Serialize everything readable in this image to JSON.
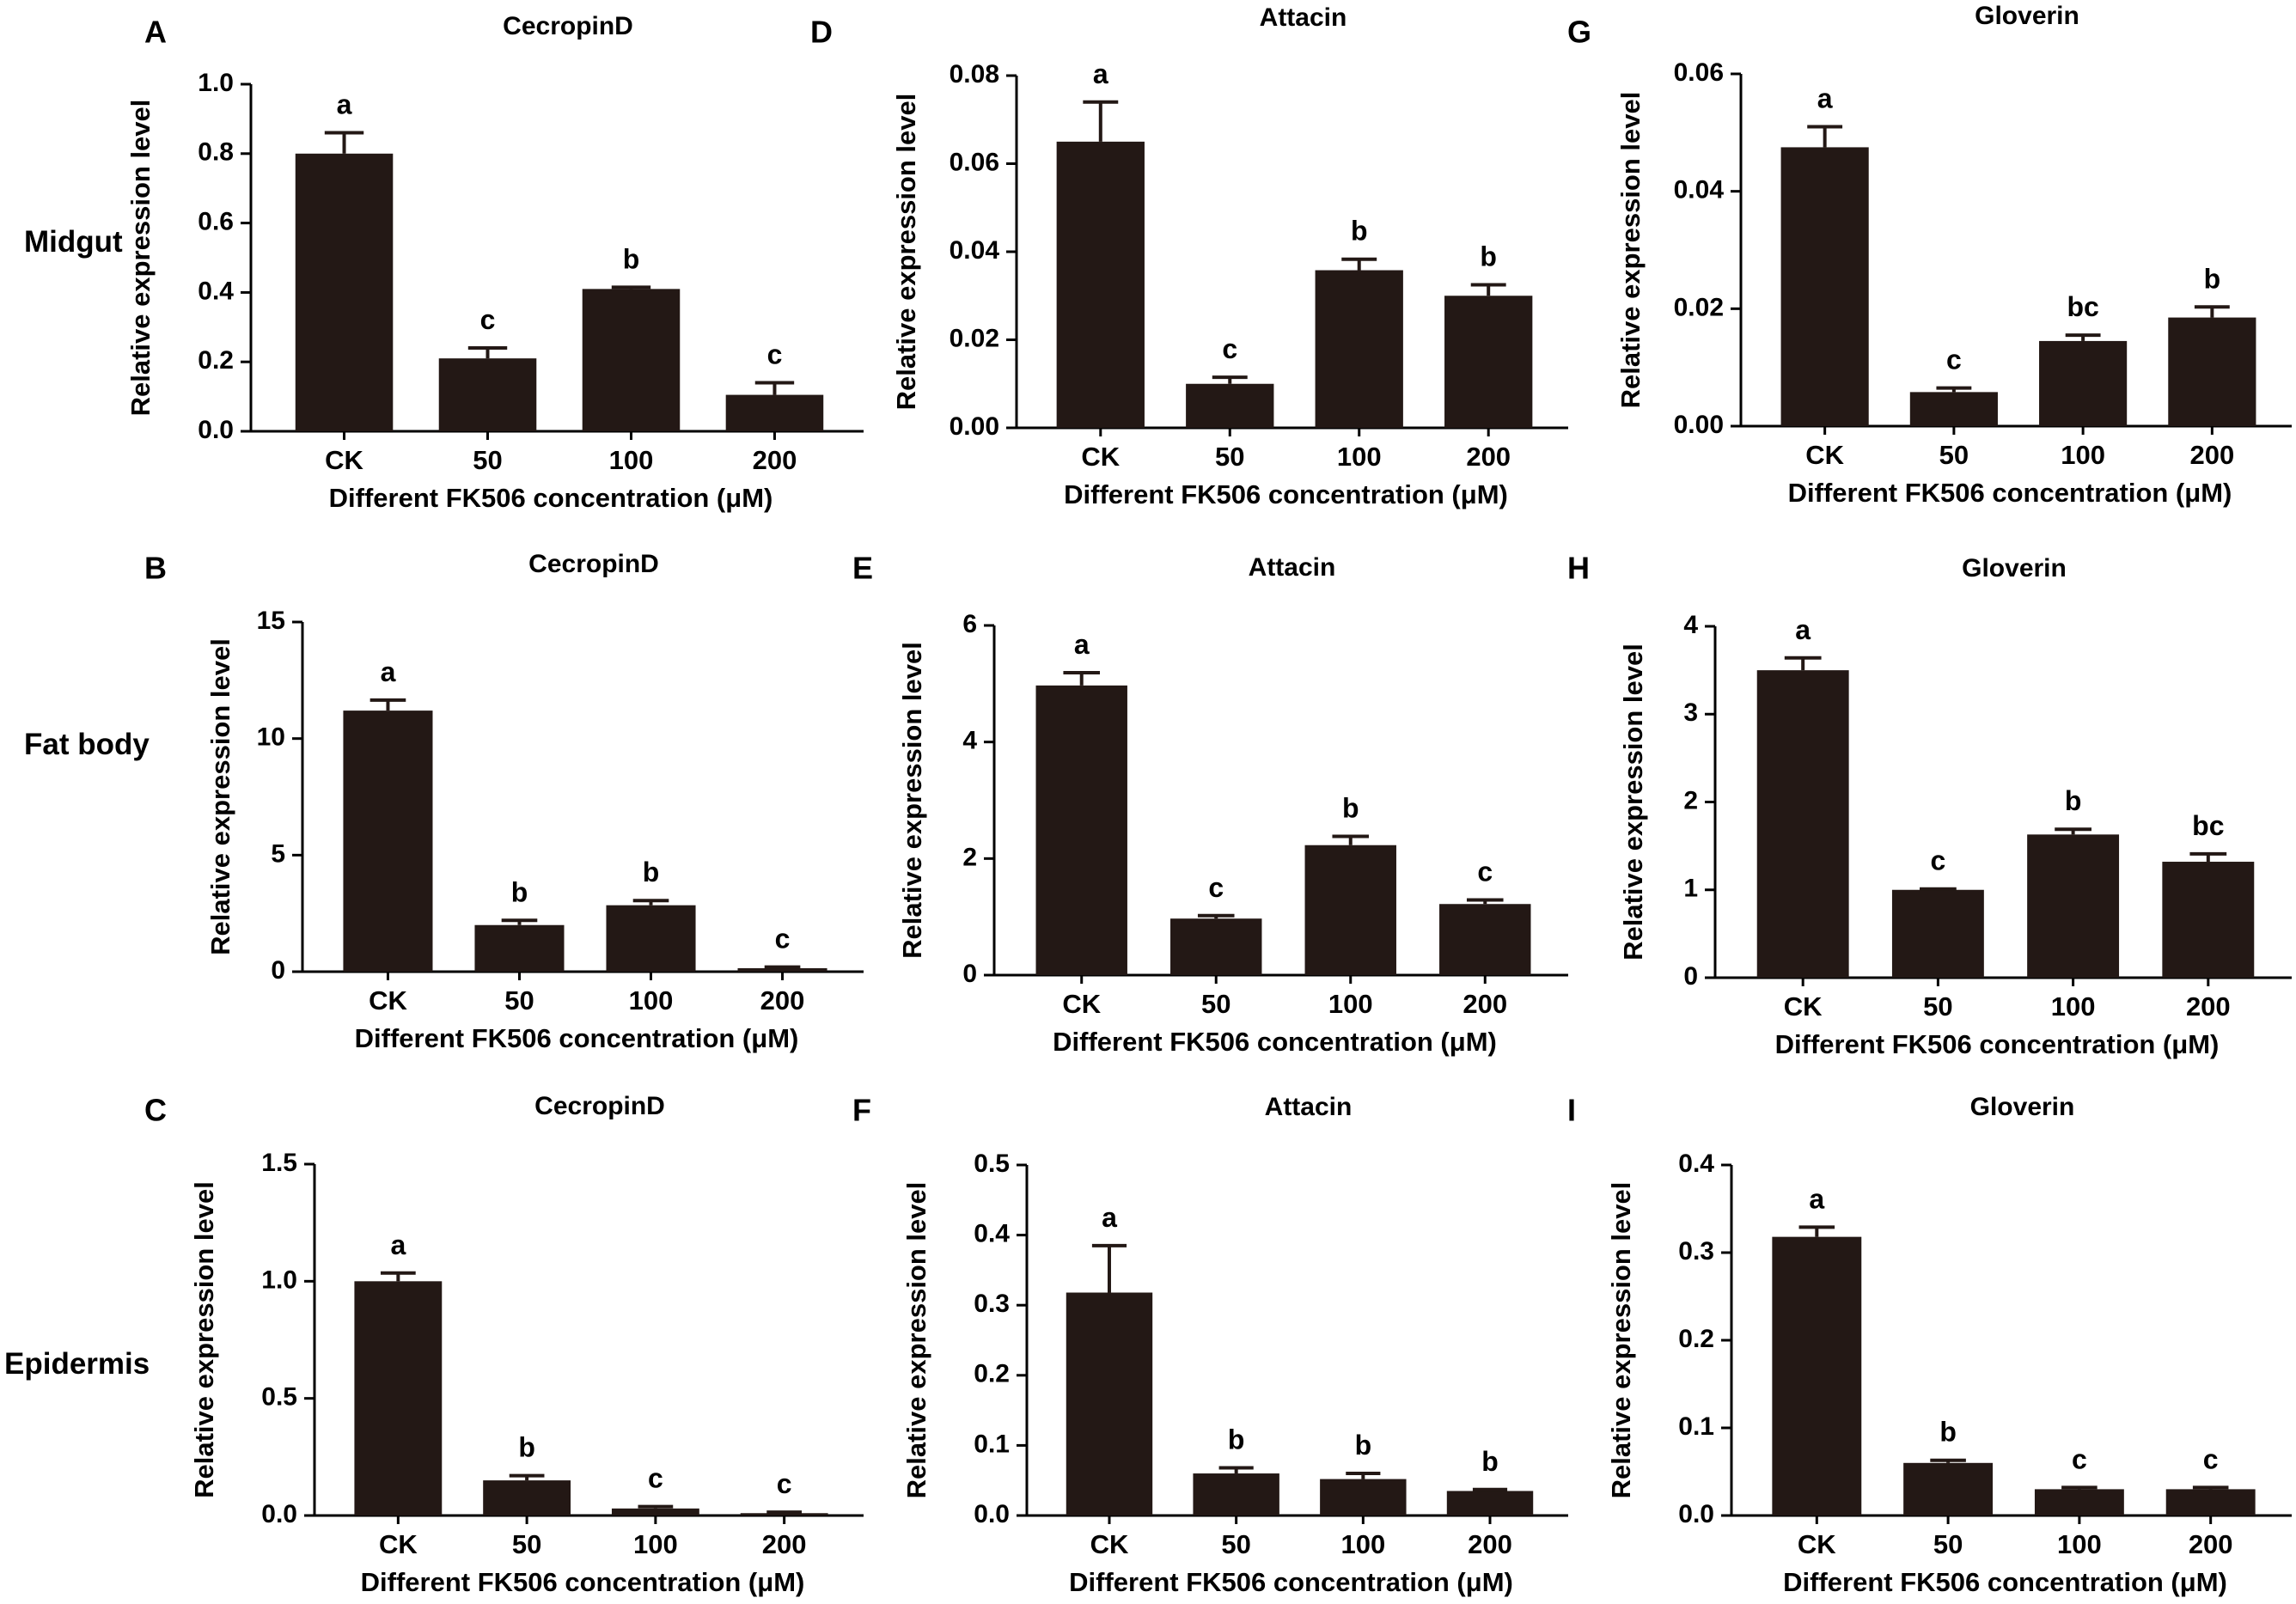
{
  "colors": {
    "bar": "#231815",
    "axis": "#000000",
    "text": "#000000"
  },
  "rows": [
    {
      "label": "Midgut"
    },
    {
      "label": "Fat body"
    },
    {
      "label": "Epidermis"
    }
  ],
  "chart_data": [
    {
      "panel": "A",
      "type": "bar",
      "title": "CecropinD",
      "categories": [
        "CK",
        "50",
        "100",
        "200"
      ],
      "values": [
        0.8,
        0.21,
        0.41,
        0.105
      ],
      "errors": [
        0.06,
        0.03,
        0.005,
        0.035
      ],
      "letters": [
        "a",
        "c",
        "b",
        "c"
      ],
      "ylim": [
        0,
        1.0
      ],
      "yticks": [
        "0.0",
        "0.2",
        "0.4",
        "0.6",
        "0.8",
        "1.0"
      ],
      "xlabel": "Different FK506 concentration (μM)",
      "ylabel": "Relative expression level"
    },
    {
      "panel": "B",
      "type": "bar",
      "title": "CecropinD",
      "categories": [
        "CK",
        "50",
        "100",
        "200"
      ],
      "values": [
        11.2,
        2.0,
        2.85,
        0.15
      ],
      "errors": [
        0.45,
        0.2,
        0.2,
        0.05
      ],
      "letters": [
        "a",
        "b",
        "b",
        "c"
      ],
      "ylim": [
        0,
        15
      ],
      "yticks": [
        "0",
        "5",
        "10",
        "15"
      ],
      "xlabel": "Different FK506 concentration (μM)",
      "ylabel": "Relative expression level"
    },
    {
      "panel": "C",
      "type": "bar",
      "title": "CecropinD",
      "categories": [
        "CK",
        "50",
        "100",
        "200"
      ],
      "values": [
        1.0,
        0.15,
        0.03,
        0.01
      ],
      "errors": [
        0.035,
        0.02,
        0.008,
        0.004
      ],
      "letters": [
        "a",
        "b",
        "c",
        "c"
      ],
      "ylim": [
        0,
        1.5
      ],
      "yticks": [
        "0.0",
        "0.5",
        "1.0",
        "1.5"
      ],
      "xlabel": "Different FK506 concentration (μM)",
      "ylabel": "Relative expression level"
    },
    {
      "panel": "D",
      "type": "bar",
      "title": "Attacin",
      "categories": [
        "CK",
        "50",
        "100",
        "200"
      ],
      "values": [
        0.065,
        0.01,
        0.0358,
        0.03
      ],
      "errors": [
        0.009,
        0.0015,
        0.0025,
        0.0025
      ],
      "letters": [
        "a",
        "c",
        "b",
        "b"
      ],
      "ylim": [
        0,
        0.08
      ],
      "yticks": [
        "0.00",
        "0.02",
        "0.04",
        "0.06",
        "0.08"
      ],
      "xlabel": "Different FK506 concentration (μM)",
      "ylabel": "Relative expression level"
    },
    {
      "panel": "E",
      "type": "bar",
      "title": "Attacin",
      "categories": [
        "CK",
        "50",
        "100",
        "200"
      ],
      "values": [
        4.97,
        0.97,
        2.23,
        1.22
      ],
      "errors": [
        0.22,
        0.05,
        0.15,
        0.07
      ],
      "letters": [
        "a",
        "c",
        "b",
        "c"
      ],
      "ylim": [
        0,
        6
      ],
      "yticks": [
        "0",
        "2",
        "4",
        "6"
      ],
      "xlabel": "Different FK506 concentration (μM)",
      "ylabel": "Relative expression level"
    },
    {
      "panel": "F",
      "type": "bar",
      "title": "Attacin",
      "categories": [
        "CK",
        "50",
        "100",
        "200"
      ],
      "values": [
        0.318,
        0.06,
        0.052,
        0.035
      ],
      "errors": [
        0.067,
        0.008,
        0.008,
        0.002
      ],
      "letters": [
        "a",
        "b",
        "b",
        "b"
      ],
      "ylim": [
        0,
        0.5
      ],
      "yticks": [
        "0.0",
        "0.1",
        "0.2",
        "0.3",
        "0.4",
        "0.5"
      ],
      "xlabel": "Different FK506 concentration (μM)",
      "ylabel": "Relative expression level"
    },
    {
      "panel": "G",
      "type": "bar",
      "title": "Gloverin",
      "categories": [
        "CK",
        "50",
        "100",
        "200"
      ],
      "values": [
        0.0475,
        0.0058,
        0.0145,
        0.0185
      ],
      "errors": [
        0.0035,
        0.0007,
        0.001,
        0.0018
      ],
      "letters": [
        "a",
        "c",
        "bc",
        "b"
      ],
      "ylim": [
        0,
        0.06
      ],
      "yticks": [
        "0.00",
        "0.02",
        "0.04",
        "0.06"
      ],
      "xlabel": "Different FK506 concentration (μM)",
      "ylabel": "Relative expression level"
    },
    {
      "panel": "H",
      "type": "bar",
      "title": "Gloverin",
      "categories": [
        "CK",
        "50",
        "100",
        "200"
      ],
      "values": [
        3.5,
        1.0,
        1.63,
        1.32
      ],
      "errors": [
        0.14,
        0.01,
        0.06,
        0.09
      ],
      "letters": [
        "a",
        "c",
        "b",
        "bc"
      ],
      "ylim": [
        0,
        4
      ],
      "yticks": [
        "0",
        "1",
        "2",
        "3",
        "4"
      ],
      "xlabel": "Different FK506 concentration (μM)",
      "ylabel": "Relative expression level"
    },
    {
      "panel": "I",
      "type": "bar",
      "title": "Gloverin",
      "categories": [
        "CK",
        "50",
        "100",
        "200"
      ],
      "values": [
        0.318,
        0.06,
        0.03,
        0.03
      ],
      "errors": [
        0.011,
        0.003,
        0.002,
        0.002
      ],
      "letters": [
        "a",
        "b",
        "c",
        "c"
      ],
      "ylim": [
        0,
        0.4
      ],
      "yticks": [
        "0.0",
        "0.1",
        "0.2",
        "0.3",
        "0.4"
      ],
      "xlabel": "Different FK506 concentration (μM)",
      "ylabel": "Relative expression level"
    }
  ]
}
